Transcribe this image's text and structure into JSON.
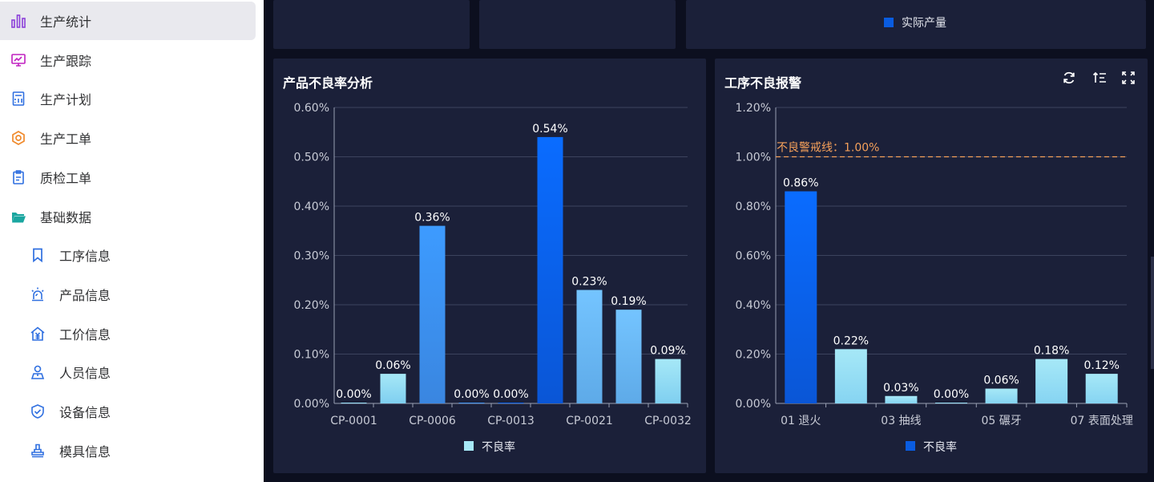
{
  "sidebar": {
    "items": [
      {
        "label": "生产统计",
        "icon": "bar-chart-icon",
        "active": true,
        "level": 1,
        "color": "#8b3fd9"
      },
      {
        "label": "生产跟踪",
        "icon": "monitor-chart-icon",
        "active": false,
        "level": 1,
        "color": "#c020c0"
      },
      {
        "label": "生产计划",
        "icon": "calculator-icon",
        "active": false,
        "level": 1,
        "color": "#2f6fe0"
      },
      {
        "label": "生产工单",
        "icon": "hexagon-nut-icon",
        "active": false,
        "level": 1,
        "color": "#f08a2c"
      },
      {
        "label": "质检工单",
        "icon": "clipboard-icon",
        "active": false,
        "level": 1,
        "color": "#2f6fe0"
      },
      {
        "label": "基础数据",
        "icon": "folder-open-icon",
        "active": false,
        "level": 1,
        "color": "#1aa6a0"
      },
      {
        "label": "工序信息",
        "icon": "bookmark-icon",
        "active": false,
        "level": 2,
        "color": "#2f6fe0"
      },
      {
        "label": "产品信息",
        "icon": "alarm-light-icon",
        "active": false,
        "level": 2,
        "color": "#2f6fe0"
      },
      {
        "label": "工价信息",
        "icon": "price-house-icon",
        "active": false,
        "level": 2,
        "color": "#2f6fe0"
      },
      {
        "label": "人员信息",
        "icon": "person-icon",
        "active": false,
        "level": 2,
        "color": "#2f6fe0"
      },
      {
        "label": "设备信息",
        "icon": "shield-check-icon",
        "active": false,
        "level": 2,
        "color": "#2f6fe0"
      },
      {
        "label": "模具信息",
        "icon": "stamp-icon",
        "active": false,
        "level": 2,
        "color": "#2f6fe0"
      }
    ]
  },
  "top_panels": {
    "legend_label": "实际产量",
    "legend_color": "#0a5ce0"
  },
  "defect_chart": {
    "title": "产品不良率分析",
    "legend_label": "不良率",
    "legend_color": "#a6e8f7",
    "chart_data": {
      "type": "bar",
      "categories": [
        "CP-0001",
        "",
        "CP-0006",
        "",
        "CP-0013",
        "",
        "CP-0021",
        "",
        "CP-0032"
      ],
      "values": [
        0.0,
        0.06,
        0.36,
        0.0,
        0.0,
        0.54,
        0.23,
        0.19,
        0.09
      ],
      "data_labels": [
        "0.00%",
        "0.06%",
        "0.36%",
        "0.00%",
        "0.00%",
        "0.54%",
        "0.23%",
        "0.19%",
        "0.09%"
      ],
      "ylim": [
        0,
        0.6
      ],
      "yticks": [
        "0.00%",
        "0.10%",
        "0.20%",
        "0.30%",
        "0.40%",
        "0.50%",
        "0.60%"
      ],
      "series_name": "不良率",
      "legend_position": "bottom-center",
      "grid": true
    }
  },
  "process_chart": {
    "title": "工序不良报警",
    "legend_label": "不良率",
    "legend_color": "#0a5ce0",
    "tools": [
      "refresh-icon",
      "sort-icon",
      "fullscreen-icon"
    ],
    "chart_data": {
      "type": "bar",
      "categories": [
        "01 退火",
        "",
        "03 抽线",
        "",
        "05 碾牙",
        "",
        "07 表面处理"
      ],
      "values": [
        0.86,
        0.22,
        0.03,
        0.0,
        0.06,
        0.18,
        0.12
      ],
      "data_labels": [
        "0.86%",
        "0.22%",
        "0.03%",
        "0.00%",
        "0.06%",
        "0.18%",
        "0.12%"
      ],
      "ylim": [
        0,
        1.2
      ],
      "yticks": [
        "0.00%",
        "0.20%",
        "0.40%",
        "0.60%",
        "0.80%",
        "1.00%",
        "1.20%"
      ],
      "threshold": 1.0,
      "threshold_label": "不良警戒线：1.00%",
      "threshold_color": "#f5a05a",
      "series_name": "不良率",
      "legend_position": "bottom-center",
      "grid": true
    }
  }
}
